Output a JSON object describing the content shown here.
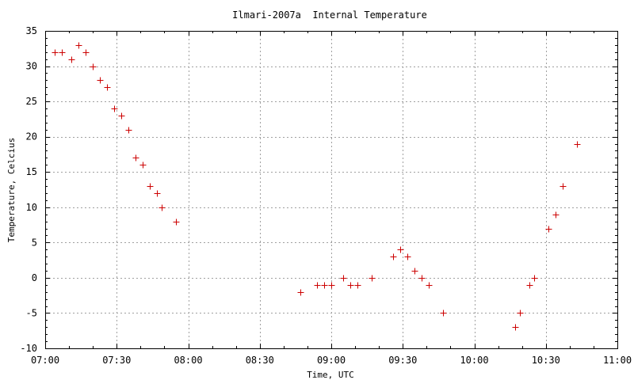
{
  "chart_data": {
    "type": "scatter",
    "title": "Ilmari-2007a  Internal Temperature",
    "xlabel": "Time, UTC",
    "ylabel": "Temperature, Celcius",
    "x_unit": "time (HH:MM, UTC)",
    "xlim": [
      "07:00",
      "11:00"
    ],
    "ylim": [
      -10,
      35
    ],
    "x_ticks": [
      "07:00",
      "07:30",
      "08:00",
      "08:30",
      "09:00",
      "09:30",
      "10:00",
      "10:30",
      "11:00"
    ],
    "y_ticks": [
      -10,
      -5,
      0,
      5,
      10,
      15,
      20,
      25,
      30,
      35
    ],
    "grid": true,
    "legend": false,
    "marker": "plus",
    "colors": {
      "marker": "#cc0000",
      "grid": "#a0a0a0",
      "axis": "#000000"
    },
    "series": [
      {
        "points": [
          {
            "x": "07:04",
            "y": 32
          },
          {
            "x": "07:07",
            "y": 32
          },
          {
            "x": "07:11",
            "y": 31
          },
          {
            "x": "07:14",
            "y": 33
          },
          {
            "x": "07:17",
            "y": 32
          },
          {
            "x": "07:20",
            "y": 30
          },
          {
            "x": "07:23",
            "y": 28
          },
          {
            "x": "07:26",
            "y": 27
          },
          {
            "x": "07:29",
            "y": 24
          },
          {
            "x": "07:32",
            "y": 23
          },
          {
            "x": "07:35",
            "y": 21
          },
          {
            "x": "07:38",
            "y": 17
          },
          {
            "x": "07:41",
            "y": 16
          },
          {
            "x": "07:44",
            "y": 13
          },
          {
            "x": "07:47",
            "y": 12
          },
          {
            "x": "07:49",
            "y": 10
          },
          {
            "x": "07:55",
            "y": 8
          },
          {
            "x": "08:47",
            "y": -2
          },
          {
            "x": "08:54",
            "y": -1
          },
          {
            "x": "08:57",
            "y": -1
          },
          {
            "x": "09:00",
            "y": -1
          },
          {
            "x": "09:05",
            "y": 0
          },
          {
            "x": "09:08",
            "y": -1
          },
          {
            "x": "09:11",
            "y": -1
          },
          {
            "x": "09:17",
            "y": 0
          },
          {
            "x": "09:26",
            "y": 3
          },
          {
            "x": "09:29",
            "y": 4
          },
          {
            "x": "09:32",
            "y": 3
          },
          {
            "x": "09:35",
            "y": 1
          },
          {
            "x": "09:38",
            "y": 0
          },
          {
            "x": "09:41",
            "y": -1
          },
          {
            "x": "09:47",
            "y": -5
          },
          {
            "x": "10:17",
            "y": -7
          },
          {
            "x": "10:19",
            "y": -5
          },
          {
            "x": "10:23",
            "y": -1
          },
          {
            "x": "10:25",
            "y": 0
          },
          {
            "x": "10:31",
            "y": 7
          },
          {
            "x": "10:34",
            "y": 9
          },
          {
            "x": "10:37",
            "y": 13
          },
          {
            "x": "10:43",
            "y": 19
          }
        ]
      }
    ]
  }
}
